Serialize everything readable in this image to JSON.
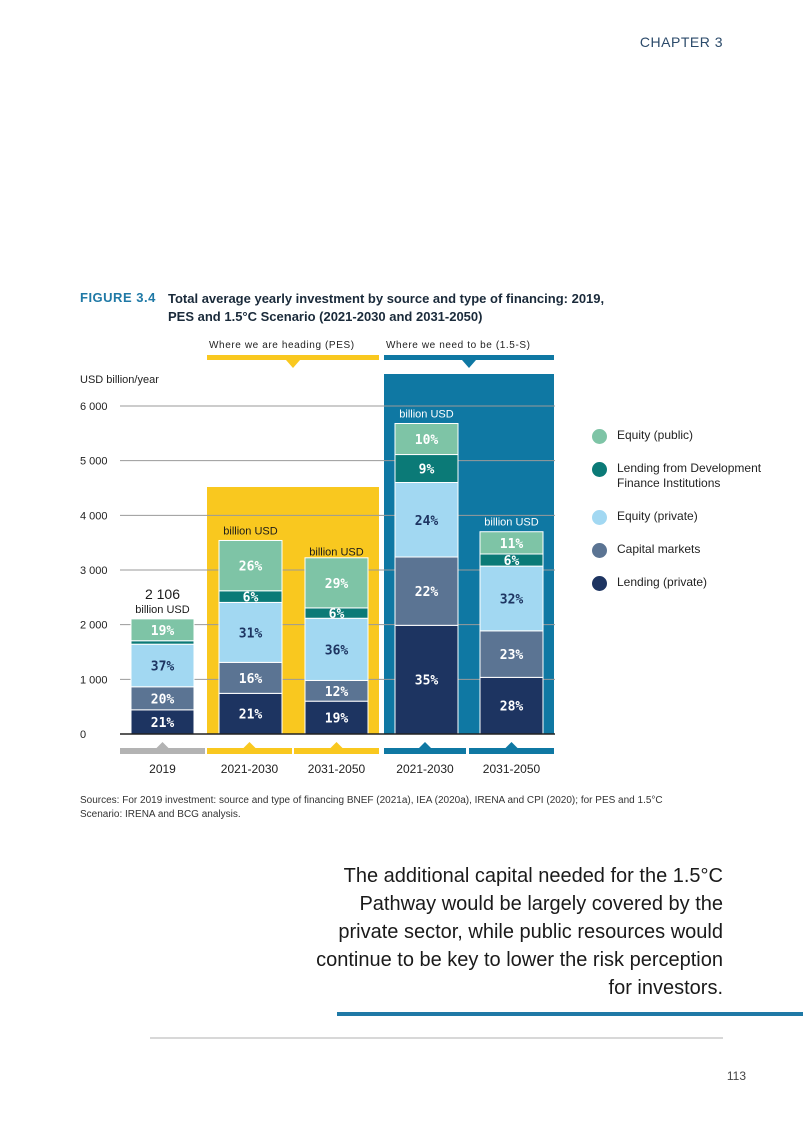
{
  "header": {
    "chapter": "CHAPTER 3"
  },
  "figure": {
    "label": "FIGURE 3.4",
    "title": "Total average yearly investment by source and type of financing: 2019, PES and 1.5°C Scenario (2021-2030 and 2031-2050)"
  },
  "chart_data": {
    "type": "bar",
    "stacked": true,
    "ylabel": "USD billion/year",
    "ylim": [
      0,
      6000
    ],
    "yticks": [
      0,
      1000,
      2000,
      3000,
      4000,
      5000,
      6000
    ],
    "ytick_labels": [
      "0",
      "1 000",
      "2 000",
      "3 000",
      "4 000",
      "5 000",
      "6 000"
    ],
    "unit_label": "billion USD",
    "pct_suffix": "%",
    "groups": [
      {
        "label": "Where we are heading (PES)",
        "color": "#f9c81f"
      },
      {
        "label": "Where we need to be (1.5-S)",
        "color": "#0f78a3"
      }
    ],
    "categories": [
      "2019",
      "2021-2030",
      "2031-2050",
      "2021-2030",
      "2031-2050"
    ],
    "totals": [
      2106,
      3540,
      3160,
      5680,
      3700
    ],
    "total_labels": [
      "2 106",
      "",
      "",
      "",
      ""
    ],
    "series": [
      {
        "name": "Lending (private)",
        "color": "#1d3461",
        "percents": [
          21,
          21,
          19,
          35,
          28
        ]
      },
      {
        "name": "Capital markets",
        "color": "#5b7493",
        "percents": [
          20,
          16,
          12,
          22,
          23
        ]
      },
      {
        "name": "Equity (private)",
        "color": "#a2d8f2",
        "percents": [
          37,
          31,
          36,
          24,
          32
        ]
      },
      {
        "name": "Lending from Development Finance Institutions",
        "color": "#0b7a77",
        "percents": [
          3,
          6,
          6,
          9,
          6
        ]
      },
      {
        "name": "Equity (public)",
        "color": "#7ec4a6",
        "percents": [
          19,
          26,
          29,
          10,
          11
        ]
      }
    ],
    "segment_labels": [
      [
        "21",
        "20",
        "37",
        "",
        "19"
      ],
      [
        "21",
        "16",
        "31",
        "6",
        "26"
      ],
      [
        "19",
        "12",
        "36",
        "6",
        "29"
      ],
      [
        "35",
        "22",
        "24",
        "9",
        "10"
      ],
      [
        "28",
        "23",
        "32",
        "6",
        "11"
      ]
    ],
    "legend": [
      {
        "name": "Equity (public)",
        "color": "#7ec4a6"
      },
      {
        "name": "Lending from Development Finance Institutions",
        "color": "#0b7a77"
      },
      {
        "name": "Equity (private)",
        "color": "#a2d8f2"
      },
      {
        "name": "Capital markets",
        "color": "#5b7493"
      },
      {
        "name": "Lending (private)",
        "color": "#1d3461"
      }
    ]
  },
  "sources": "Sources: For 2019 investment: source and type of financing BNEF (2021a), IEA (2020a), IRENA and CPI (2020); for PES and 1.5°C Scenario: IRENA and BCG analysis.",
  "callout": "The additional capital needed for the 1.5°C Pathway would be largely covered by the private sector, while public resources would continue to be key to lower the risk perception for investors.",
  "page_number": "113"
}
